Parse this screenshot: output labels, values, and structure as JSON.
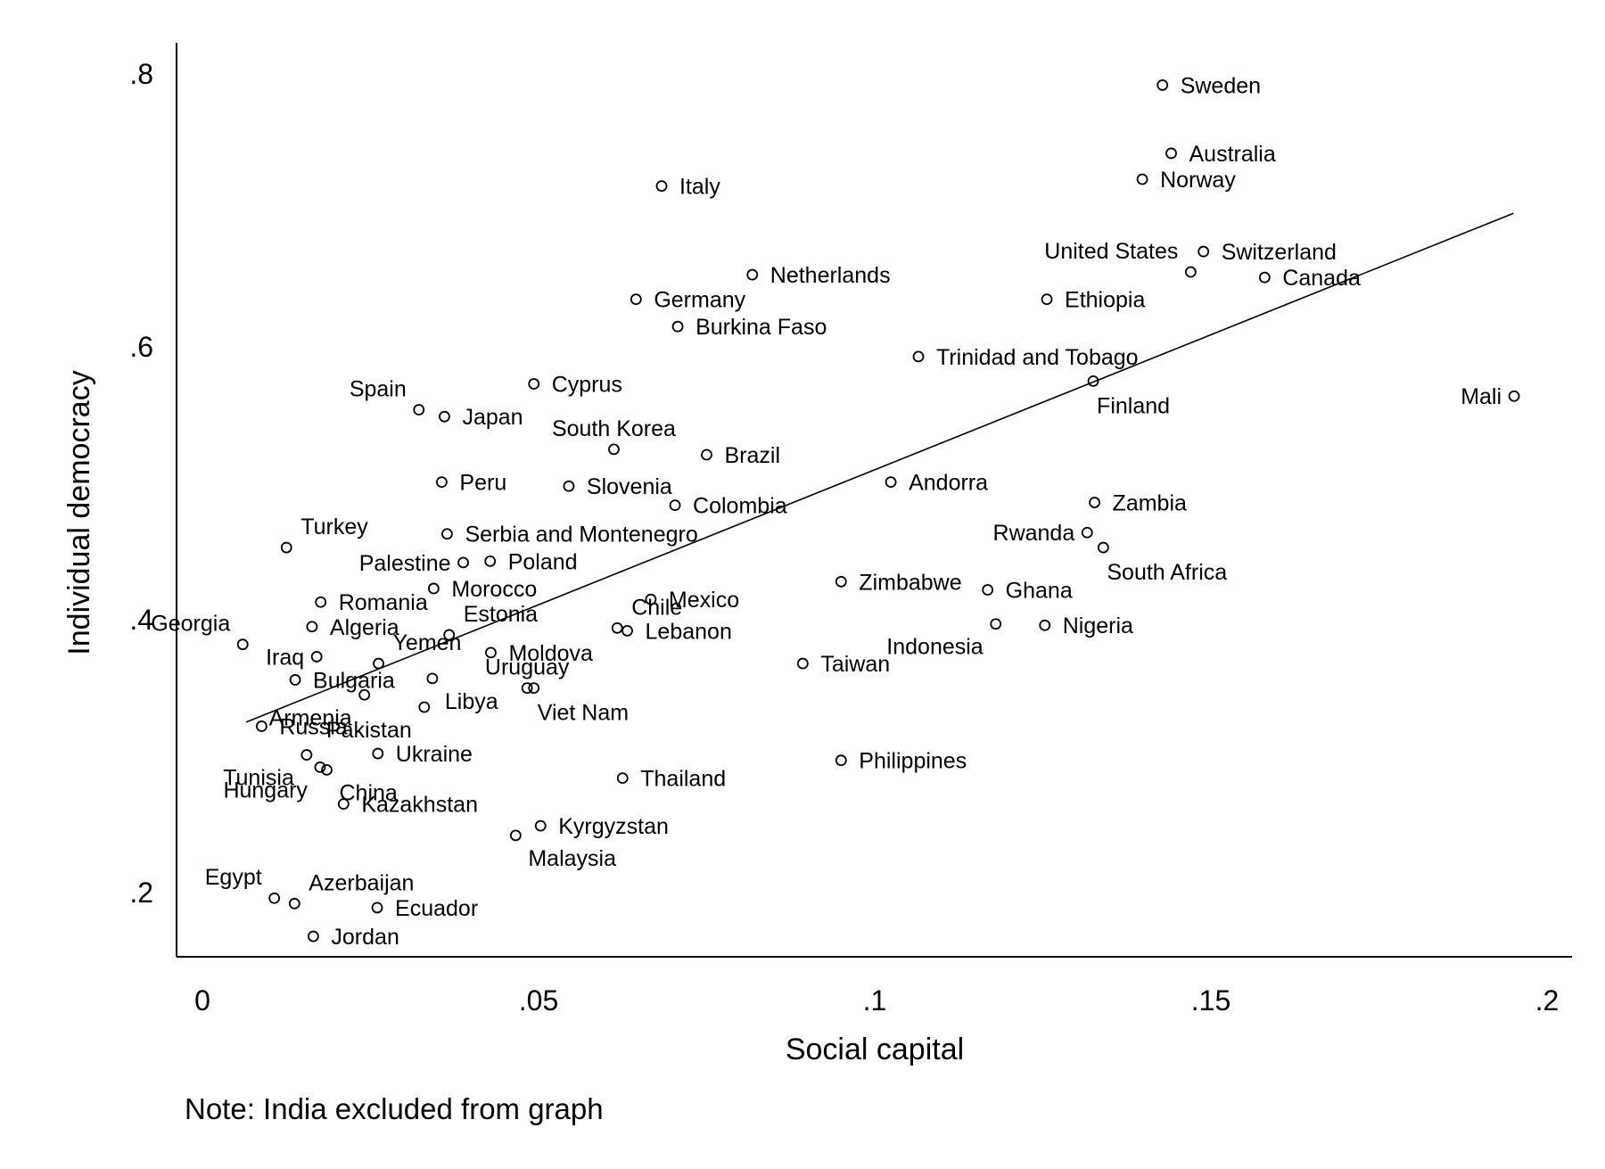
{
  "chart_data": {
    "type": "scatter",
    "xlabel": "Social capital",
    "ylabel": "Individual democracy",
    "note": "Note: India excluded from graph",
    "xlim": [
      0,
      0.2
    ],
    "ylim": [
      0.153,
      0.823
    ],
    "x_ticks": [
      {
        "value": 0,
        "label": "0"
      },
      {
        "value": 0.05,
        "label": ".05"
      },
      {
        "value": 0.1,
        "label": ".1"
      },
      {
        "value": 0.15,
        "label": ".15"
      },
      {
        "value": 0.2,
        "label": ".2"
      }
    ],
    "y_ticks": [
      {
        "value": 0.2,
        "label": ".2"
      },
      {
        "value": 0.4,
        "label": ".4"
      },
      {
        "value": 0.6,
        "label": ".6"
      },
      {
        "value": 0.8,
        "label": ".8"
      }
    ],
    "fit_line": {
      "x": [
        0.0065,
        0.195
      ],
      "y": [
        0.325,
        0.698
      ]
    },
    "grid": false,
    "legend": "none",
    "marker_color": "#000000",
    "points": [
      {
        "name": "Sweden",
        "x": 0.1428,
        "y": 0.792,
        "label_pos": "right"
      },
      {
        "name": "Australia",
        "x": 0.1441,
        "y": 0.742,
        "label_pos": "right"
      },
      {
        "name": "Norway",
        "x": 0.1398,
        "y": 0.723,
        "label_pos": "right"
      },
      {
        "name": "Italy",
        "x": 0.0683,
        "y": 0.718,
        "label_pos": "right"
      },
      {
        "name": "Switzerland",
        "x": 0.1489,
        "y": 0.67,
        "label_pos": "right"
      },
      {
        "name": "United States",
        "x": 0.147,
        "y": 0.655,
        "label_pos": "upleft"
      },
      {
        "name": "Canada",
        "x": 0.158,
        "y": 0.651,
        "label_pos": "right"
      },
      {
        "name": "Netherlands",
        "x": 0.0818,
        "y": 0.653,
        "label_pos": "right"
      },
      {
        "name": "Germany",
        "x": 0.0645,
        "y": 0.635,
        "label_pos": "right"
      },
      {
        "name": "Ethiopia",
        "x": 0.1256,
        "y": 0.635,
        "label_pos": "right"
      },
      {
        "name": "Burkina Faso",
        "x": 0.0707,
        "y": 0.615,
        "label_pos": "right"
      },
      {
        "name": "Trinidad and Tobago",
        "x": 0.1065,
        "y": 0.593,
        "label_pos": "right"
      },
      {
        "name": "Finland",
        "x": 0.1325,
        "y": 0.575,
        "label_pos": "below"
      },
      {
        "name": "Mali",
        "x": 0.1951,
        "y": 0.564,
        "label_pos": "left"
      },
      {
        "name": "Cyprus",
        "x": 0.0493,
        "y": 0.573,
        "label_pos": "right"
      },
      {
        "name": "Spain",
        "x": 0.0322,
        "y": 0.554,
        "label_pos": "upleft"
      },
      {
        "name": "Japan",
        "x": 0.036,
        "y": 0.549,
        "label_pos": "right"
      },
      {
        "name": "South Korea",
        "x": 0.0612,
        "y": 0.525,
        "label_pos": "up"
      },
      {
        "name": "Brazil",
        "x": 0.075,
        "y": 0.521,
        "label_pos": "right"
      },
      {
        "name": "Peru",
        "x": 0.0356,
        "y": 0.501,
        "label_pos": "right"
      },
      {
        "name": "Slovenia",
        "x": 0.0545,
        "y": 0.498,
        "label_pos": "right"
      },
      {
        "name": "Andorra",
        "x": 0.1024,
        "y": 0.501,
        "label_pos": "right"
      },
      {
        "name": "Colombia",
        "x": 0.0703,
        "y": 0.484,
        "label_pos": "right"
      },
      {
        "name": "Zambia",
        "x": 0.1327,
        "y": 0.486,
        "label_pos": "right"
      },
      {
        "name": "Turkey",
        "x": 0.0125,
        "y": 0.453,
        "label_pos": "upright"
      },
      {
        "name": "Serbia and Montenegro",
        "x": 0.0364,
        "y": 0.463,
        "label_pos": "right"
      },
      {
        "name": "Rwanda",
        "x": 0.1316,
        "y": 0.464,
        "label_pos": "left"
      },
      {
        "name": "South Africa",
        "x": 0.134,
        "y": 0.453,
        "label_pos": "below"
      },
      {
        "name": "Palestine",
        "x": 0.0388,
        "y": 0.442,
        "label_pos": "left"
      },
      {
        "name": "Poland",
        "x": 0.0428,
        "y": 0.443,
        "label_pos": "right"
      },
      {
        "name": "Zimbabwe",
        "x": 0.095,
        "y": 0.428,
        "label_pos": "right"
      },
      {
        "name": "Ghana",
        "x": 0.1168,
        "y": 0.422,
        "label_pos": "right"
      },
      {
        "name": "Morocco",
        "x": 0.0344,
        "y": 0.423,
        "label_pos": "right"
      },
      {
        "name": "Romania",
        "x": 0.0176,
        "y": 0.413,
        "label_pos": "right"
      },
      {
        "name": "Mexico",
        "x": 0.0667,
        "y": 0.415,
        "label_pos": "right"
      },
      {
        "name": "Chile",
        "x": 0.0617,
        "y": 0.394,
        "label_pos": "upright"
      },
      {
        "name": "Lebanon",
        "x": 0.0632,
        "y": 0.392,
        "label_pos": "right"
      },
      {
        "name": "Georgia",
        "x": 0.006,
        "y": 0.382,
        "label_pos": "upleft"
      },
      {
        "name": "Algeria",
        "x": 0.0163,
        "y": 0.395,
        "label_pos": "right"
      },
      {
        "name": "Estonia",
        "x": 0.0367,
        "y": 0.389,
        "label_pos": "upright"
      },
      {
        "name": "Indonesia",
        "x": 0.118,
        "y": 0.397,
        "label_pos": "belowleft"
      },
      {
        "name": "Nigeria",
        "x": 0.1253,
        "y": 0.396,
        "label_pos": "right"
      },
      {
        "name": "Iraq",
        "x": 0.017,
        "y": 0.373,
        "label_pos": "left"
      },
      {
        "name": "Yemen",
        "x": 0.0262,
        "y": 0.368,
        "label_pos": "upright"
      },
      {
        "name": "Moldova",
        "x": 0.0429,
        "y": 0.376,
        "label_pos": "right"
      },
      {
        "name": "Taiwan",
        "x": 0.0893,
        "y": 0.368,
        "label_pos": "right"
      },
      {
        "name": "Bulgaria",
        "x": 0.0138,
        "y": 0.356,
        "label_pos": "right"
      },
      {
        "name": "Uruguay",
        "x": 0.0483,
        "y": 0.35,
        "label_pos": "up"
      },
      {
        "name": "Libya",
        "x": 0.0342,
        "y": 0.357,
        "label_pos": "belowright"
      },
      {
        "name": "Armenia",
        "x": 0.0241,
        "y": 0.345,
        "label_pos": "belowleft"
      },
      {
        "name": "Russia",
        "x": 0.0088,
        "y": 0.322,
        "label_pos": "right"
      },
      {
        "name": "Pakistan",
        "x": 0.033,
        "y": 0.336,
        "label_pos": "belowleft"
      },
      {
        "name": "Viet Nam",
        "x": 0.0493,
        "y": 0.35,
        "label_pos": "below"
      },
      {
        "name": "Ukraine",
        "x": 0.0261,
        "y": 0.302,
        "label_pos": "right"
      },
      {
        "name": "Tunisia",
        "x": 0.0155,
        "y": 0.301,
        "label_pos": "belowleft"
      },
      {
        "name": "China",
        "x": 0.0185,
        "y": 0.29,
        "label_pos": "belowright"
      },
      {
        "name": "Philippines",
        "x": 0.095,
        "y": 0.297,
        "label_pos": "right"
      },
      {
        "name": "Thailand",
        "x": 0.0625,
        "y": 0.284,
        "label_pos": "right"
      },
      {
        "name": "Hungary",
        "x": 0.0175,
        "y": 0.292,
        "label_pos": "belowleft"
      },
      {
        "name": "Kazakhstan",
        "x": 0.021,
        "y": 0.265,
        "label_pos": "right"
      },
      {
        "name": "Kyrgyzstan",
        "x": 0.0503,
        "y": 0.249,
        "label_pos": "right"
      },
      {
        "name": "Malaysia",
        "x": 0.0466,
        "y": 0.242,
        "label_pos": "belowright"
      },
      {
        "name": "Egypt",
        "x": 0.0107,
        "y": 0.196,
        "label_pos": "upleft"
      },
      {
        "name": "Azerbaijan",
        "x": 0.0137,
        "y": 0.192,
        "label_pos": "upright"
      },
      {
        "name": "Ecuador",
        "x": 0.026,
        "y": 0.189,
        "label_pos": "right"
      },
      {
        "name": "Jordan",
        "x": 0.0165,
        "y": 0.168,
        "label_pos": "right"
      }
    ]
  }
}
